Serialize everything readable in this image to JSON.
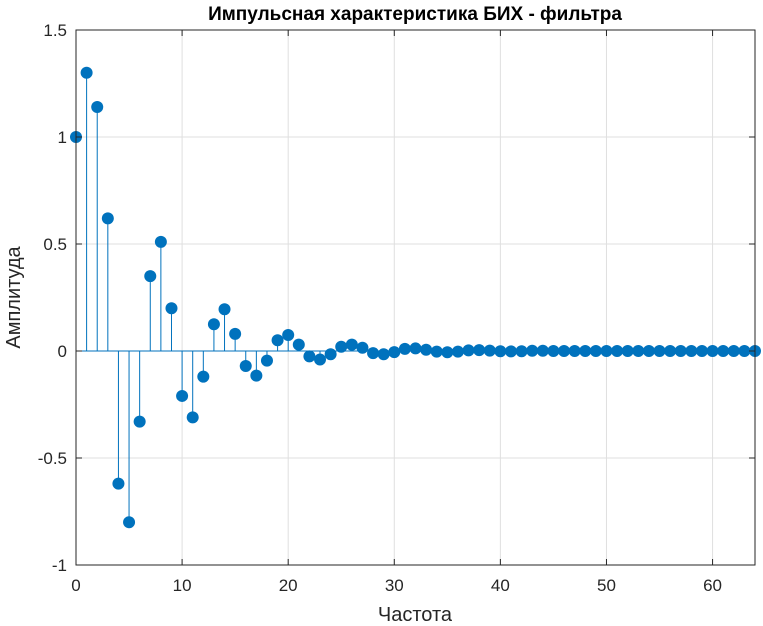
{
  "chart_data": {
    "type": "stem",
    "title": "Импульсная характеристика БИХ - фильтра",
    "xlabel": "Частота",
    "ylabel": "Амплитуда",
    "xlim": [
      0,
      64
    ],
    "ylim": [
      -1,
      1.5
    ],
    "xticks": [
      0,
      10,
      20,
      30,
      40,
      50,
      60
    ],
    "xtick_labels": [
      "0",
      "10",
      "20",
      "30",
      "40",
      "50",
      "60"
    ],
    "yticks": [
      -1,
      -0.5,
      0,
      0.5,
      1,
      1.5
    ],
    "ytick_labels": [
      "-1",
      "-0.5",
      "0",
      "0.5",
      "1",
      "1.5"
    ],
    "grid": true,
    "color": "#0072BD",
    "x": [
      0,
      1,
      2,
      3,
      4,
      5,
      6,
      7,
      8,
      9,
      10,
      11,
      12,
      13,
      14,
      15,
      16,
      17,
      18,
      19,
      20,
      21,
      22,
      23,
      24,
      25,
      26,
      27,
      28,
      29,
      30,
      31,
      32,
      33,
      34,
      35,
      36,
      37,
      38,
      39,
      40,
      41,
      42,
      43,
      44,
      45,
      46,
      47,
      48,
      49,
      50,
      51,
      52,
      53,
      54,
      55,
      56,
      57,
      58,
      59,
      60,
      61,
      62,
      63,
      64
    ],
    "y": [
      1.0,
      1.3,
      1.14,
      0.62,
      -0.62,
      -0.8,
      -0.33,
      0.35,
      0.51,
      0.2,
      -0.21,
      -0.31,
      -0.12,
      0.125,
      0.195,
      0.08,
      -0.07,
      -0.115,
      -0.045,
      0.05,
      0.075,
      0.03,
      -0.025,
      -0.04,
      -0.015,
      0.02,
      0.03,
      0.015,
      -0.01,
      -0.015,
      -0.005,
      0.01,
      0.012,
      0.006,
      -0.003,
      -0.006,
      -0.003,
      0.003,
      0.004,
      0.002,
      -0.001,
      -0.002,
      -0.001,
      0.001,
      0.001,
      0.0,
      0.0,
      0.0,
      0.0,
      0.0,
      0.0,
      0.0,
      0.0,
      0.0,
      0.0,
      0.0,
      0.0,
      0.0,
      0.0,
      0.0,
      0.0,
      0.0,
      0.0,
      0.0,
      0.0
    ]
  }
}
